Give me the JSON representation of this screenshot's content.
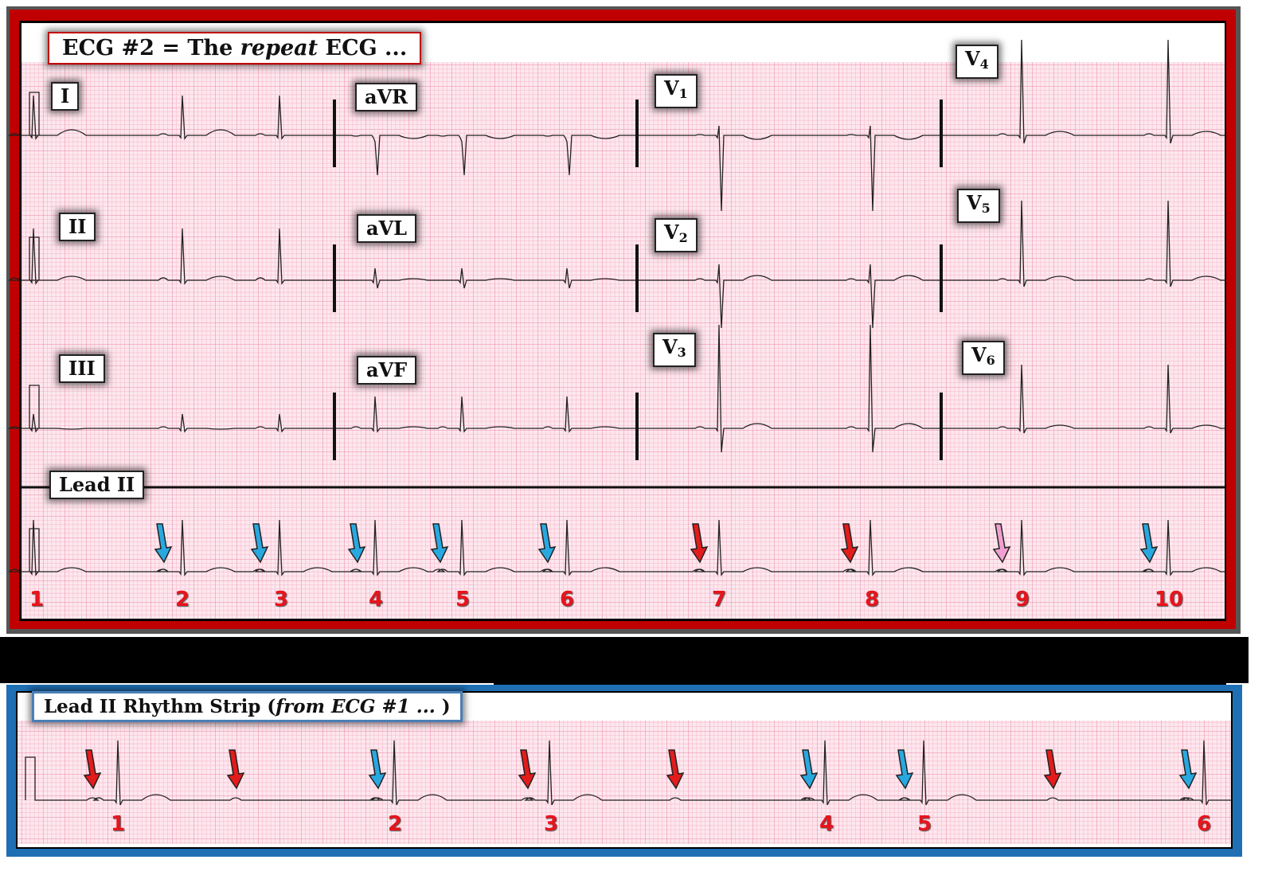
{
  "colors": {
    "top_border": "#c00000",
    "bottom_border": "#1f6fb5",
    "grid_bg": "#fde8ef",
    "grid_minor": "#f8c6d4",
    "grid_major": "#f09ab3",
    "trace": "#222222",
    "number": "#e8141c"
  },
  "top_panel": {
    "title_parts": [
      "ECG #2 = The ",
      "repeat",
      " ECG ..."
    ],
    "leads": {
      "I": "I",
      "aVR": "aVR",
      "V1": "V",
      "V1_sub": "1",
      "V4": "V",
      "V4_sub": "4",
      "II": "II",
      "aVL": "aVL",
      "V2": "V",
      "V2_sub": "2",
      "V5": "V",
      "V5_sub": "5",
      "III": "III",
      "aVF": "aVF",
      "V3": "V",
      "V3_sub": "3",
      "V6": "V",
      "V6_sub": "6"
    },
    "rhythm_label": "Lead II",
    "beat_numbers": [
      "1",
      "2",
      "3",
      "4",
      "5",
      "6",
      "7",
      "8",
      "9",
      "10"
    ],
    "arrows": [
      {
        "color": "blue"
      },
      {
        "color": "blue"
      },
      {
        "color": "blue"
      },
      {
        "color": "blue"
      },
      {
        "color": "blue"
      },
      {
        "color": "red"
      },
      {
        "color": "red"
      },
      {
        "color": "pink"
      },
      {
        "color": "blue"
      }
    ]
  },
  "bottom_panel": {
    "title_parts": [
      "Lead II Rhythm Strip (",
      "from ECG #1 ...",
      " )"
    ],
    "beat_numbers": [
      "1",
      "2",
      "3",
      "4",
      "5",
      "6"
    ],
    "arrows": [
      {
        "color": "red"
      },
      {
        "color": "red"
      },
      {
        "color": "blue"
      },
      {
        "color": "red"
      },
      {
        "color": "red"
      },
      {
        "color": "blue"
      },
      {
        "color": "blue"
      },
      {
        "color": "red"
      },
      {
        "color": "blue"
      }
    ]
  },
  "arrow_colors": {
    "red": "#e31b1b",
    "blue": "#29a8e0",
    "pink": "#f0a0d0"
  }
}
